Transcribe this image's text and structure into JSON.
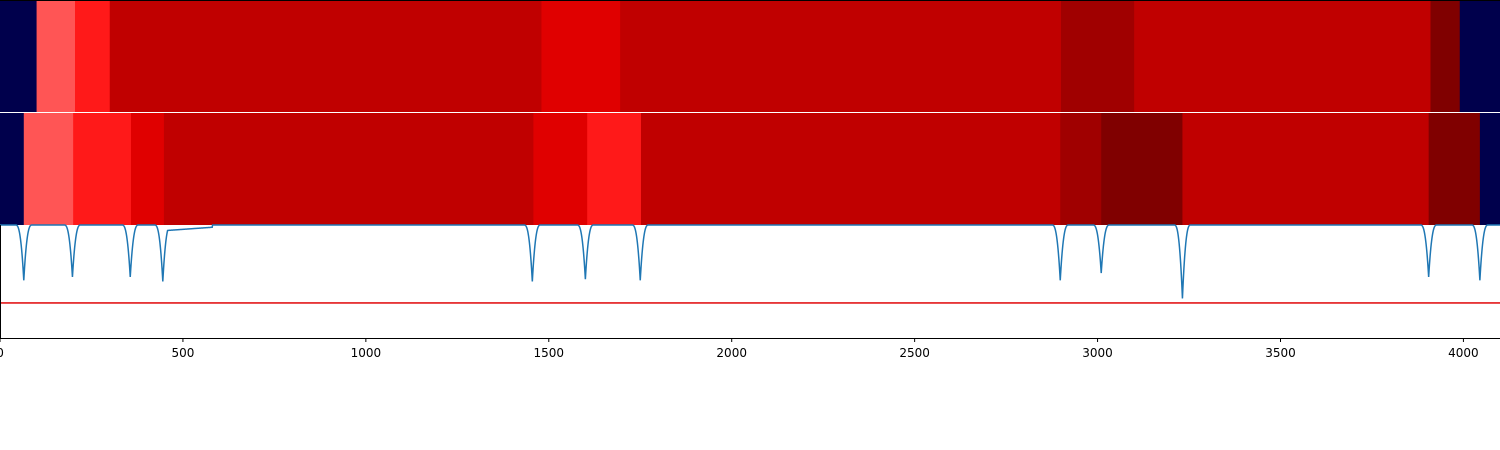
{
  "chart_data": [
    {
      "type": "heatmap",
      "panel": "top-strip",
      "xlim": [
        0,
        4100
      ],
      "segments": [
        {
          "start": 0,
          "end": 100,
          "color": "#00004c"
        },
        {
          "start": 100,
          "end": 205,
          "color": "#ff5555"
        },
        {
          "start": 205,
          "end": 300,
          "color": "#ff1919"
        },
        {
          "start": 300,
          "end": 1480,
          "color": "#c00000"
        },
        {
          "start": 1480,
          "end": 1695,
          "color": "#e00000"
        },
        {
          "start": 1695,
          "end": 2900,
          "color": "#c00000"
        },
        {
          "start": 2900,
          "end": 3100,
          "color": "#a00000"
        },
        {
          "start": 3100,
          "end": 3910,
          "color": "#c00000"
        },
        {
          "start": 3910,
          "end": 3990,
          "color": "#800000"
        },
        {
          "start": 3990,
          "end": 4100,
          "color": "#00004c"
        }
      ]
    },
    {
      "type": "heatmap",
      "panel": "middle-strip",
      "xlim": [
        0,
        4100
      ],
      "segments": [
        {
          "start": 0,
          "end": 65,
          "color": "#00004c"
        },
        {
          "start": 65,
          "end": 200,
          "color": "#ff5555"
        },
        {
          "start": 200,
          "end": 358,
          "color": "#ff1919"
        },
        {
          "start": 358,
          "end": 448,
          "color": "#e00000"
        },
        {
          "start": 448,
          "end": 1458,
          "color": "#c00000"
        },
        {
          "start": 1458,
          "end": 1605,
          "color": "#e00000"
        },
        {
          "start": 1605,
          "end": 1752,
          "color": "#ff1919"
        },
        {
          "start": 1752,
          "end": 2898,
          "color": "#c00000"
        },
        {
          "start": 2898,
          "end": 3010,
          "color": "#a00000"
        },
        {
          "start": 3010,
          "end": 3232,
          "color": "#800000"
        },
        {
          "start": 3232,
          "end": 3905,
          "color": "#c00000"
        },
        {
          "start": 3905,
          "end": 4045,
          "color": "#800000"
        },
        {
          "start": 4045,
          "end": 4100,
          "color": "#00004c"
        }
      ]
    },
    {
      "type": "line",
      "panel": "signal",
      "xlim": [
        0,
        4100
      ],
      "ylim": [
        -2.0,
        0.0
      ],
      "line_color": "#1f77b4",
      "threshold": {
        "y": -1.38,
        "color": "#e31a1c"
      },
      "baseline": 0,
      "dips": [
        {
          "x": 65,
          "depth": -0.98
        },
        {
          "x": 198,
          "depth": -0.92
        },
        {
          "x": 356,
          "depth": -0.92
        },
        {
          "x": 445,
          "depth": -1.0
        },
        {
          "x": 1455,
          "depth": -1.0
        },
        {
          "x": 1600,
          "depth": -0.96
        },
        {
          "x": 1750,
          "depth": -0.98
        },
        {
          "x": 2898,
          "depth": -0.98
        },
        {
          "x": 3010,
          "depth": -0.85
        },
        {
          "x": 3232,
          "depth": -1.3
        },
        {
          "x": 3905,
          "depth": -0.92
        },
        {
          "x": 4045,
          "depth": -0.98
        }
      ],
      "shelves": [
        {
          "start": 450,
          "end": 580,
          "level": -0.1
        }
      ],
      "xticks": [
        0,
        500,
        1000,
        1500,
        2000,
        2500,
        3000,
        3500,
        4000
      ],
      "xtick_labels": [
        "0",
        "500",
        "1000",
        "1500",
        "2000",
        "2500",
        "3000",
        "3500",
        "4000"
      ],
      "title": "",
      "xlabel": "",
      "ylabel": ""
    }
  ]
}
